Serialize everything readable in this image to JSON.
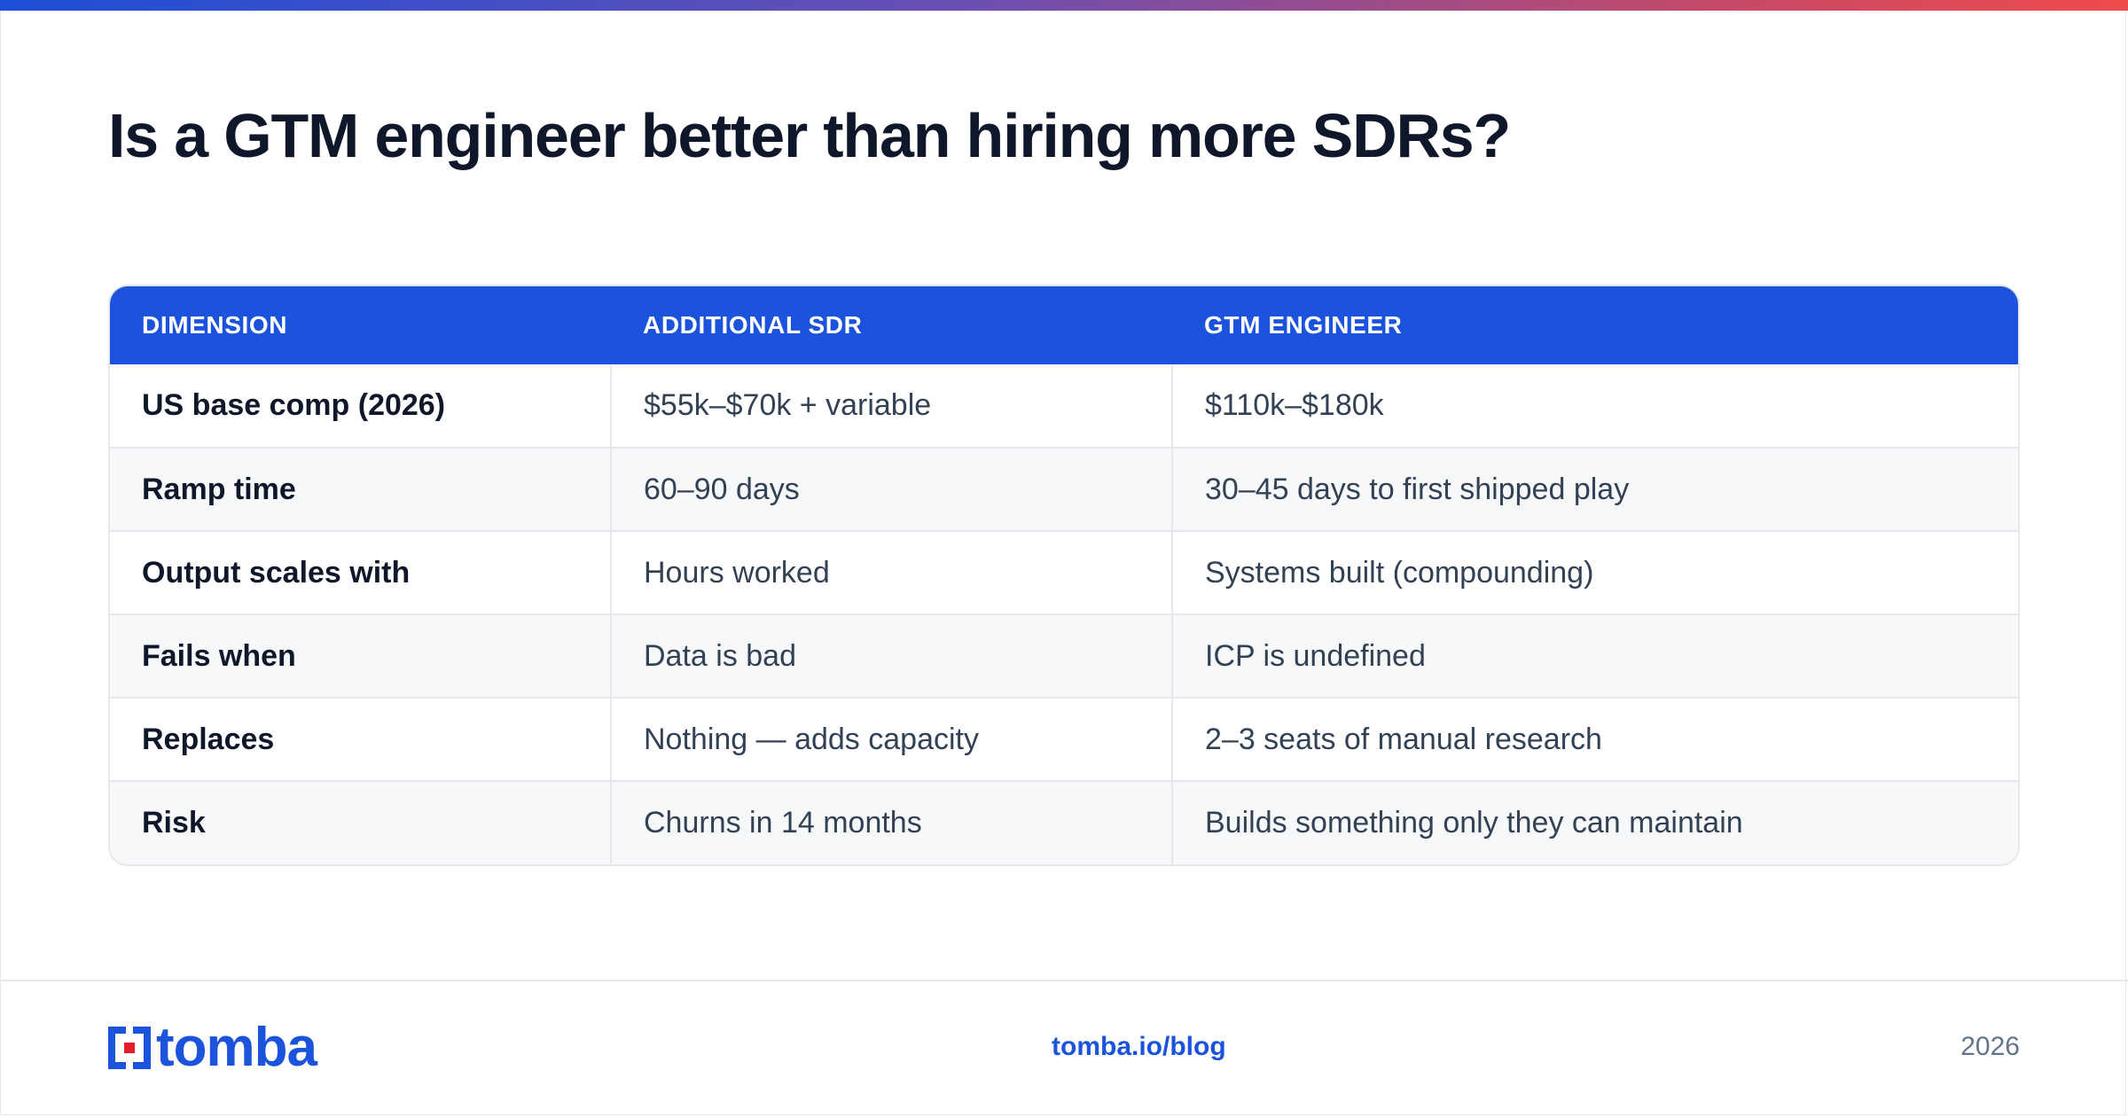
{
  "title": "Is a GTM engineer better than hiring more SDRs?",
  "table": {
    "headers": [
      "DIMENSION",
      "ADDITIONAL SDR",
      "GTM ENGINEER"
    ],
    "rows": [
      [
        "US base comp (2026)",
        "$55k–$70k + variable",
        "$110k–$180k"
      ],
      [
        "Ramp time",
        "60–90 days",
        "30–45 days to first shipped play"
      ],
      [
        "Output scales with",
        "Hours worked",
        "Systems built (compounding)"
      ],
      [
        "Fails when",
        "Data is bad",
        "ICP is undefined"
      ],
      [
        "Replaces",
        "Nothing — adds capacity",
        "2–3 seats of manual research"
      ],
      [
        "Risk",
        "Churns in 14 months",
        "Builds something only they can maintain"
      ]
    ]
  },
  "footer": {
    "logo_text": "tomba",
    "logo_icon": "tomba-logo-icon",
    "link": "tomba.io/blog",
    "year": "2026"
  },
  "colors": {
    "accent": "#1b53dc",
    "logo_red": "#e11d2e",
    "gradient_start": "#1d4fd8",
    "gradient_end": "#ef4b4b"
  }
}
